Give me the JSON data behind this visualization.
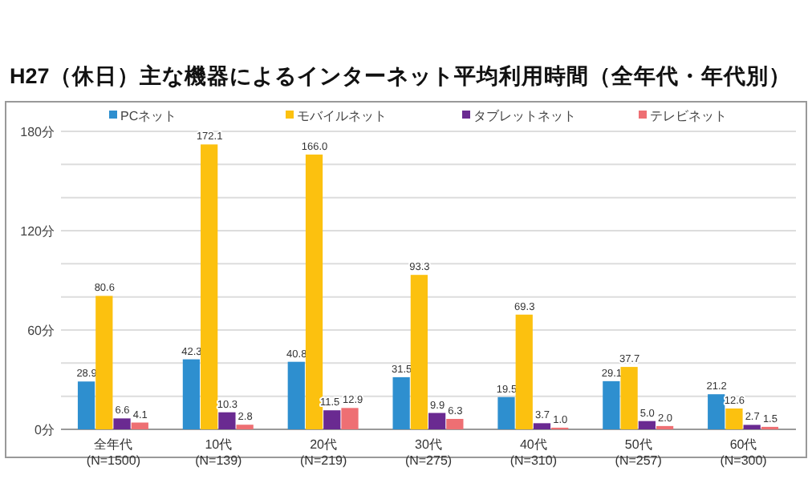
{
  "chart_data": {
    "type": "bar",
    "title": "H27（休日）主な機器によるインターネット平均利用時間（全年代・年代別）",
    "categories": [
      "全年代 (N=1500)",
      "10代 (N=139)",
      "20代 (N=219)",
      "30代 (N=275)",
      "40代 (N=310)",
      "50代 (N=257)",
      "60代 (N=300)"
    ],
    "series": [
      {
        "name": "PCネット",
        "color": "#2e8fcf",
        "values": [
          28.9,
          42.3,
          40.8,
          31.5,
          19.5,
          29.1,
          21.2
        ]
      },
      {
        "name": "モバイルネット",
        "color": "#fcc10f",
        "values": [
          80.6,
          172.1,
          166.0,
          93.3,
          69.3,
          37.7,
          12.6
        ]
      },
      {
        "name": "タブレットネット",
        "color": "#6a2a91",
        "values": [
          6.6,
          10.3,
          11.5,
          9.9,
          3.7,
          5.0,
          2.7
        ]
      },
      {
        "name": "テレビネット",
        "color": "#ee6f73",
        "values": [
          4.1,
          2.8,
          12.9,
          6.3,
          1.0,
          2.0,
          1.5
        ]
      }
    ],
    "ylim": [
      0,
      180
    ],
    "yticks": [
      {
        "value": 0,
        "label": "0分"
      },
      {
        "value": 20,
        "label": null
      },
      {
        "value": 40,
        "label": null
      },
      {
        "value": 60,
        "label": "60分"
      },
      {
        "value": 80,
        "label": null
      },
      {
        "value": 100,
        "label": null
      },
      {
        "value": 120,
        "label": "120分"
      },
      {
        "value": 140,
        "label": null
      },
      {
        "value": 160,
        "label": null
      },
      {
        "value": 180,
        "label": "180分"
      }
    ],
    "grid": "y",
    "legend": "top",
    "value_labels": [
      [
        "28.9",
        "42.3",
        "40.8",
        "31.5",
        "19.5",
        "29.1",
        "21.2"
      ],
      [
        "80.6",
        "172.1",
        "166.0",
        "93.3",
        "69.3",
        "37.7",
        "12.6"
      ],
      [
        "6.6",
        "10.3",
        "11.5",
        "9.9",
        "3.7",
        "5.0",
        "2.7"
      ],
      [
        "4.1",
        "2.8",
        "12.9",
        "6.3",
        "1.0",
        "2.0",
        "1.5"
      ]
    ]
  }
}
